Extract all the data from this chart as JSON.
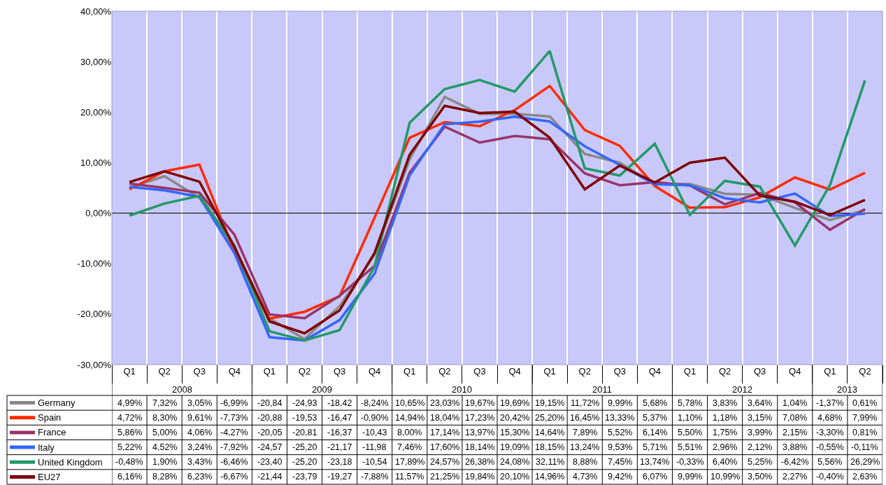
{
  "chart_data": {
    "type": "line",
    "categories": [
      "Q1",
      "Q2",
      "Q3",
      "Q4",
      "Q1",
      "Q2",
      "Q3",
      "Q4",
      "Q1",
      "Q2",
      "Q3",
      "Q4",
      "Q1",
      "Q2",
      "Q3",
      "Q4",
      "Q1",
      "Q2",
      "Q3",
      "Q4",
      "Q1",
      "Q2"
    ],
    "annotations": [
      "2008",
      "2009",
      "2010",
      "2011",
      "2012",
      "2013"
    ],
    "ylim": [
      -30,
      40
    ],
    "yticks": [
      {
        "value": -30,
        "label": "-30,00%"
      },
      {
        "value": -20,
        "label": "-20,00%"
      },
      {
        "value": -10,
        "label": "-10,00%"
      },
      {
        "value": 0,
        "label": "0,00%"
      },
      {
        "value": 10,
        "label": "10,00%"
      },
      {
        "value": 20,
        "label": "20,00%"
      },
      {
        "value": 30,
        "label": "30,00%"
      },
      {
        "value": 40,
        "label": "40,00%"
      }
    ],
    "grid": "x",
    "legend": "bottom left",
    "marker": "none",
    "line_style": "solid",
    "series": [
      {
        "name": "Germany",
        "color": "#888888",
        "values": [
          4.99,
          7.32,
          3.05,
          -6.99,
          -20.84,
          -24.93,
          -18.42,
          -8.24,
          10.65,
          23.03,
          19.67,
          19.69,
          19.15,
          11.72,
          9.99,
          5.68,
          5.78,
          3.83,
          3.64,
          1.04,
          -1.37,
          0.61
        ],
        "value_labels": [
          "4,99%",
          "7,32%",
          "3,05%",
          "-6,99%",
          "-20,84",
          "-24,93",
          "-18,42",
          "-8,24%",
          "10,65%",
          "23,03%",
          "19,67%",
          "19,69%",
          "19,15%",
          "11,72%",
          "9,99%",
          "5,68%",
          "5,78%",
          "3,83%",
          "3,64%",
          "1,04%",
          "-1,37%",
          "0,61%"
        ]
      },
      {
        "name": "Spain",
        "color": "#ff2a00",
        "values": [
          4.72,
          8.3,
          9.61,
          -7.73,
          -20.88,
          -19.53,
          -16.47,
          -0.9,
          14.94,
          18.04,
          17.23,
          20.42,
          25.2,
          16.45,
          13.33,
          5.37,
          1.1,
          1.18,
          3.15,
          7.08,
          4.68,
          7.99
        ],
        "value_labels": [
          "4,72%",
          "8,30%",
          "9,61%",
          "-7,73%",
          "-20,88",
          "-19,53",
          "-16,47",
          "-0,90%",
          "14,94%",
          "18,04%",
          "17,23%",
          "20,42%",
          "25,20%",
          "16,45%",
          "13,33%",
          "5,37%",
          "1,10%",
          "1,18%",
          "3,15%",
          "7,08%",
          "4,68%",
          "7,99%"
        ]
      },
      {
        "name": "France",
        "color": "#993366",
        "values": [
          5.86,
          5.0,
          4.06,
          -4.27,
          -20.05,
          -20.81,
          -16.37,
          -10.43,
          8.0,
          17.14,
          13.97,
          15.3,
          14.64,
          7.89,
          5.52,
          6.14,
          5.5,
          1.75,
          3.99,
          2.15,
          -3.3,
          0.81
        ],
        "value_labels": [
          "5,86%",
          "5,00%",
          "4,06%",
          "-4,27%",
          "-20,05",
          "-20,81",
          "-16,37",
          "-10,43",
          "8,00%",
          "17,14%",
          "13,97%",
          "15,30%",
          "14,64%",
          "7,89%",
          "5,52%",
          "6,14%",
          "5,50%",
          "1,75%",
          "3,99%",
          "2,15%",
          "-3,30%",
          "0,81%"
        ]
      },
      {
        "name": "Italy",
        "color": "#3366ff",
        "values": [
          5.22,
          4.52,
          3.24,
          -7.92,
          -24.57,
          -25.2,
          -21.17,
          -11.98,
          7.46,
          17.6,
          18.14,
          19.09,
          18.15,
          13.24,
          9.53,
          5.71,
          5.51,
          2.96,
          2.12,
          3.88,
          -0.55,
          -0.11
        ],
        "value_labels": [
          "5,22%",
          "4,52%",
          "3,24%",
          "-7,92%",
          "-24,57",
          "-25,20",
          "-21,17",
          "-11,98",
          "7,46%",
          "17,60%",
          "18,14%",
          "19,09%",
          "18,15%",
          "13,24%",
          "9,53%",
          "5,71%",
          "5,51%",
          "2,96%",
          "2,12%",
          "3,88%",
          "-0,55%",
          "-0,11%"
        ]
      },
      {
        "name": "United Kingdom",
        "color": "#229966",
        "values": [
          -0.48,
          1.9,
          3.43,
          -6.46,
          -23.4,
          -25.2,
          -23.18,
          -10.54,
          17.89,
          24.57,
          26.38,
          24.08,
          32.11,
          8.88,
          7.45,
          13.74,
          -0.33,
          6.4,
          5.25,
          -6.42,
          5.56,
          26.29
        ],
        "value_labels": [
          "-0,48%",
          "1,90%",
          "3,43%",
          "-6,46%",
          "-23,40",
          "-25,20",
          "-23,18",
          "-10,54",
          "17,89%",
          "24,57%",
          "26,38%",
          "24,08%",
          "32,11%",
          "8,88%",
          "7,45%",
          "13,74%",
          "-0,33%",
          "6,40%",
          "5,25%",
          "-6,42%",
          "5,56%",
          "26,29%"
        ]
      },
      {
        "name": "EU27",
        "color": "#800000",
        "values": [
          6.16,
          8.28,
          6.23,
          -6.67,
          -21.44,
          -23.79,
          -19.27,
          -7.88,
          11.57,
          21.25,
          19.84,
          20.1,
          14.96,
          4.73,
          9.42,
          6.07,
          9.99,
          10.99,
          3.5,
          2.27,
          -0.4,
          2.63
        ],
        "value_labels": [
          "6,16%",
          "8,28%",
          "6,23%",
          "-6,67%",
          "-21,44",
          "-23,79",
          "-19,27",
          "-7,88%",
          "11,57%",
          "21,25%",
          "19,84%",
          "20,10%",
          "14,96%",
          "4,73%",
          "9,42%",
          "6,07%",
          "9,99%",
          "10,99%",
          "3,50%",
          "2,27%",
          "-0,40%",
          "2,63%"
        ]
      }
    ]
  }
}
